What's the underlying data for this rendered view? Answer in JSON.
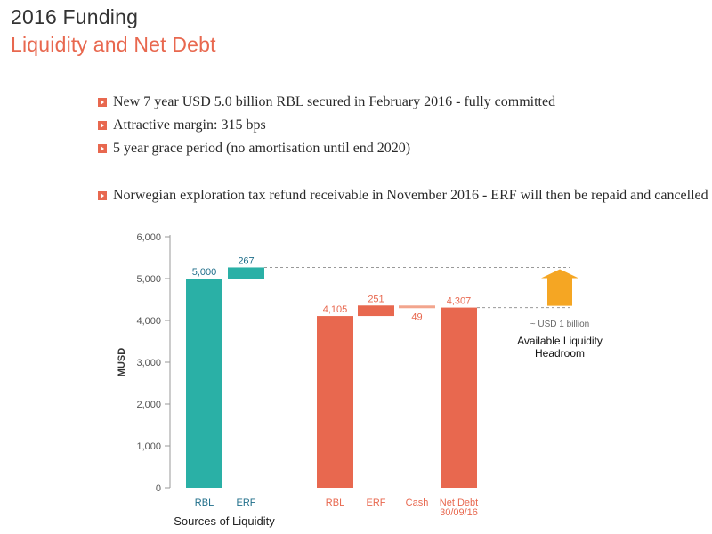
{
  "header": {
    "title": "2016 Funding",
    "subtitle": "Liquidity and Net Debt"
  },
  "bullets": [
    "New 7 year USD 5.0 billion RBL secured in February 2016 - fully committed",
    "Attractive margin: 315 bps",
    "5 year grace period (no amortisation until end 2020)",
    "Norwegian exploration tax refund receivable in November 2016 - ERF will then be repaid and cancelled"
  ],
  "colors": {
    "accent": "#e8684f",
    "teal": "#2ab0a6",
    "cash": "#f2a58d",
    "arrow": "#f5a623",
    "text": "#333333"
  },
  "chart_data": {
    "type": "bar",
    "ylabel": "MUSD",
    "ylim": [
      0,
      6000
    ],
    "yticks": [
      0,
      1000,
      2000,
      3000,
      4000,
      5000,
      6000
    ],
    "ytick_labels": [
      "0",
      "1,000",
      "2,000",
      "3,000",
      "4,000",
      "5,000",
      "6,000"
    ],
    "grid": false,
    "bars": [
      {
        "category": "RBL",
        "start": 0,
        "end": 5000,
        "label": "5,000",
        "color": "#2ab0a6"
      },
      {
        "category": "ERF",
        "start": 5000,
        "end": 5267,
        "label": "267",
        "color": "#2ab0a6"
      },
      {
        "category": "RBL",
        "start": 0,
        "end": 4105,
        "label": "4,105",
        "color": "#e8684f"
      },
      {
        "category": "ERF",
        "start": 4105,
        "end": 4356,
        "label": "251",
        "color": "#e8684f"
      },
      {
        "category": "Cash",
        "start": 4356,
        "end": 4307,
        "label": "49",
        "color": "#f2a58d"
      },
      {
        "category": "Net Debt\n30/09/16",
        "start": 0,
        "end": 4307,
        "label": "4,307",
        "color": "#e8684f"
      }
    ],
    "group_label": "Sources of Liquidity",
    "annotation": {
      "value_label": "~ USD 1 billion",
      "text": "Available Liquidity\nHeadroom",
      "from": 4307,
      "to": 5267
    }
  }
}
